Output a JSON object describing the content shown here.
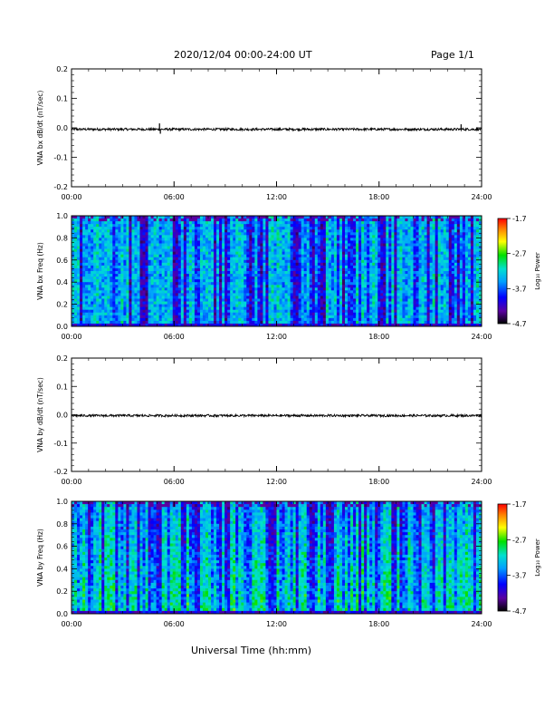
{
  "header": {
    "title": "2020/12/04  00:00-24:00 UT",
    "page": "Page 1/1"
  },
  "footer": {
    "xlabel": "Universal Time (hh:mm)"
  },
  "colors": {
    "frame": "#000000",
    "trace": "#000000",
    "background": "#ffffff"
  },
  "chart_data": [
    {
      "type": "line",
      "ylabel": "VNA bx dB/dt (nT/sec)",
      "xlim": [
        0,
        24
      ],
      "ylim": [
        -0.2,
        0.2
      ],
      "yticks": [
        "0.2",
        "0.1",
        "0.0",
        "-0.1",
        "-0.2"
      ],
      "xtick_labels": [
        "00:00",
        "06:00",
        "12:00",
        "18:00",
        "24:00"
      ],
      "series": [
        {
          "baseline": -0.005,
          "noise_amplitude": 0.004,
          "spikes": [
            {
              "t": 5.2,
              "value": -0.02
            },
            {
              "t": 5.15,
              "value": 0.015
            },
            {
              "t": 22.8,
              "value": 0.012
            }
          ]
        }
      ]
    },
    {
      "type": "heatmap",
      "ylabel": "VNA bx Freq (Hz)",
      "xlim": [
        0,
        24
      ],
      "ylim": [
        0,
        1.0
      ],
      "yticks": [
        "1.0",
        "0.8",
        "0.6",
        "0.4",
        "0.2",
        "0.0"
      ],
      "xtick_labels": [
        "00:00",
        "06:00",
        "12:00",
        "18:00",
        "24:00"
      ],
      "colorbar": {
        "label": "Log₁₀ Power",
        "ticks": [
          "-1.7",
          "-2.7",
          "-3.7",
          "-4.7"
        ],
        "range": [
          -4.7,
          -1.7
        ]
      }
    },
    {
      "type": "line",
      "ylabel": "VNA by dB/dt (nT/sec)",
      "xlim": [
        0,
        24
      ],
      "ylim": [
        -0.2,
        0.2
      ],
      "yticks": [
        "0.2",
        "0.1",
        "0.0",
        "-0.1",
        "-0.2"
      ],
      "xtick_labels": [
        "00:00",
        "06:00",
        "12:00",
        "18:00",
        "24:00"
      ],
      "series": [
        {
          "baseline": -0.003,
          "noise_amplitude": 0.004,
          "spikes": []
        }
      ]
    },
    {
      "type": "heatmap",
      "ylabel": "VNA by Freq (Hz)",
      "xlim": [
        0,
        24
      ],
      "ylim": [
        0,
        1.0
      ],
      "yticks": [
        "1.0",
        "0.8",
        "0.6",
        "0.4",
        "0.2",
        "0.0"
      ],
      "xtick_labels": [
        "00:00",
        "06:00",
        "12:00",
        "18:00",
        "24:00"
      ],
      "colorbar": {
        "label": "Log₁₀ Power",
        "ticks": [
          "-1.7",
          "-2.7",
          "-3.7",
          "-4.7"
        ],
        "range": [
          -4.7,
          -1.7
        ]
      }
    }
  ]
}
